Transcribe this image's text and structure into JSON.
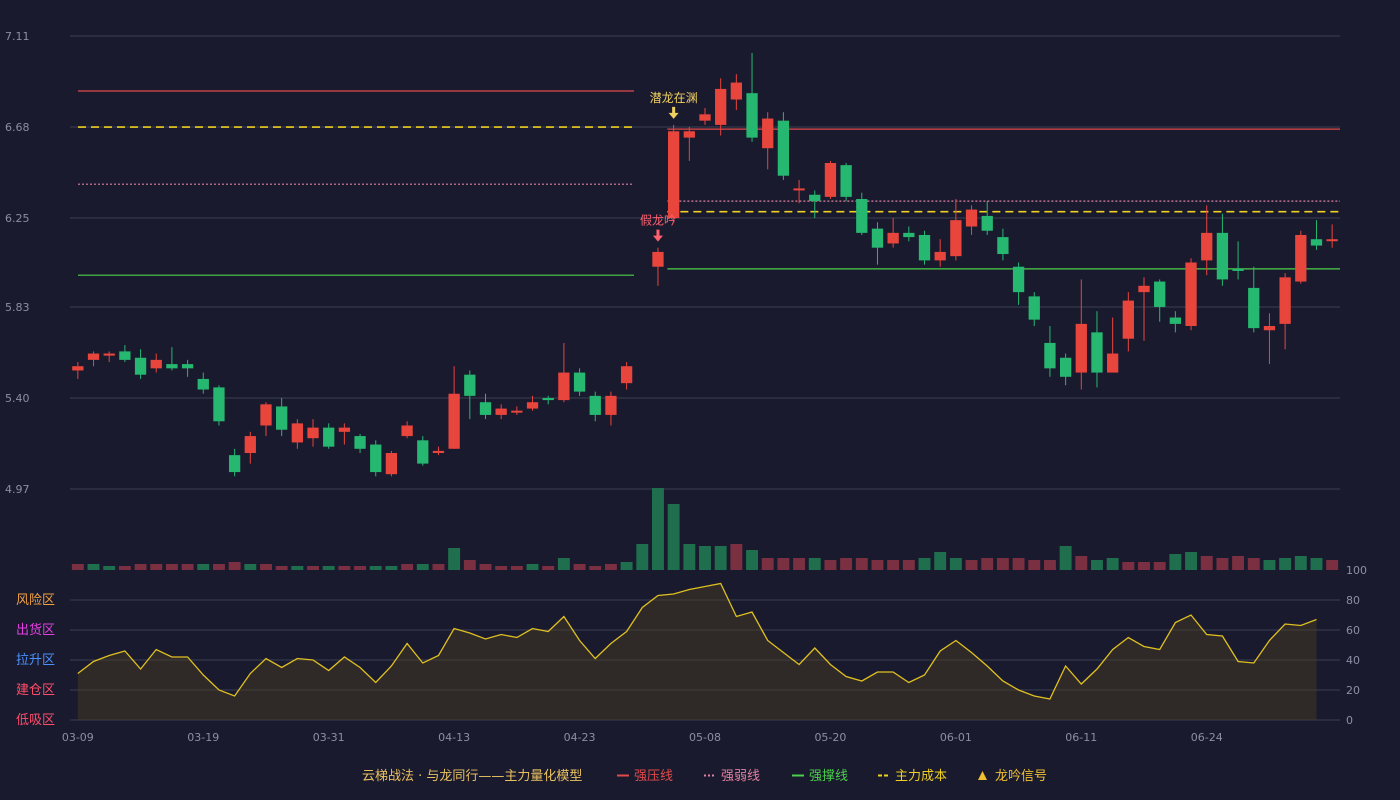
{
  "chart_data": {
    "type": "candlestick",
    "price_axis": {
      "ticks": [
        "7.11",
        "6.68",
        "6.25",
        "5.83",
        "5.40",
        "4.97"
      ],
      "ylim": [
        4.97,
        7.11
      ]
    },
    "x_ticks": [
      "03-09",
      "03-19",
      "03-31",
      "04-13",
      "04-23",
      "05-08",
      "05-20",
      "06-01",
      "06-11",
      "06-24"
    ],
    "candles": [
      [
        5.53,
        5.55,
        5.57,
        5.49
      ],
      [
        5.58,
        5.61,
        5.62,
        5.55
      ],
      [
        5.6,
        5.61,
        5.62,
        5.57
      ],
      [
        5.62,
        5.58,
        5.65,
        5.57
      ],
      [
        5.59,
        5.51,
        5.63,
        5.49
      ],
      [
        5.54,
        5.58,
        5.61,
        5.52
      ],
      [
        5.56,
        5.54,
        5.64,
        5.53
      ],
      [
        5.56,
        5.54,
        5.58,
        5.5
      ],
      [
        5.49,
        5.44,
        5.52,
        5.42
      ],
      [
        5.45,
        5.29,
        5.46,
        5.27
      ],
      [
        5.13,
        5.05,
        5.16,
        5.03
      ],
      [
        5.14,
        5.22,
        5.24,
        5.09
      ],
      [
        5.27,
        5.37,
        5.38,
        5.22
      ],
      [
        5.36,
        5.25,
        5.4,
        5.22
      ],
      [
        5.19,
        5.28,
        5.3,
        5.16
      ],
      [
        5.21,
        5.26,
        5.3,
        5.17
      ],
      [
        5.26,
        5.17,
        5.28,
        5.16
      ],
      [
        5.24,
        5.26,
        5.28,
        5.18
      ],
      [
        5.22,
        5.16,
        5.23,
        5.14
      ],
      [
        5.18,
        5.05,
        5.2,
        5.03
      ],
      [
        5.04,
        5.14,
        5.15,
        5.03
      ],
      [
        5.22,
        5.27,
        5.29,
        5.21
      ],
      [
        5.2,
        5.09,
        5.22,
        5.08
      ],
      [
        5.14,
        5.15,
        5.17,
        5.13
      ],
      [
        5.16,
        5.42,
        5.55,
        5.16
      ],
      [
        5.51,
        5.41,
        5.53,
        5.3
      ],
      [
        5.38,
        5.32,
        5.42,
        5.3
      ],
      [
        5.32,
        5.35,
        5.37,
        5.3
      ],
      [
        5.34,
        5.34,
        5.36,
        5.32
      ],
      [
        5.35,
        5.38,
        5.41,
        5.34
      ],
      [
        5.4,
        5.39,
        5.41,
        5.37
      ],
      [
        5.39,
        5.52,
        5.66,
        5.38
      ],
      [
        5.52,
        5.43,
        5.54,
        5.41
      ],
      [
        5.41,
        5.32,
        5.43,
        5.29
      ],
      [
        5.32,
        5.41,
        5.43,
        5.27
      ],
      [
        5.47,
        5.55,
        5.57,
        5.44
      ],
      null,
      [
        6.02,
        6.09,
        6.11,
        5.93
      ],
      [
        6.25,
        6.66,
        6.69,
        6.23
      ],
      [
        6.63,
        6.66,
        6.68,
        6.52
      ],
      [
        6.71,
        6.74,
        6.77,
        6.69
      ],
      [
        6.69,
        6.86,
        6.91,
        6.64
      ],
      [
        6.81,
        6.89,
        6.93,
        6.76
      ],
      [
        6.84,
        6.63,
        7.03,
        6.61
      ],
      [
        6.58,
        6.72,
        6.75,
        6.48
      ],
      [
        6.71,
        6.45,
        6.75,
        6.43
      ],
      [
        6.39,
        6.39,
        6.43,
        6.32
      ],
      [
        6.36,
        6.33,
        6.38,
        6.25
      ],
      [
        6.35,
        6.51,
        6.52,
        6.34
      ],
      [
        6.5,
        6.35,
        6.51,
        6.33
      ],
      [
        6.34,
        6.18,
        6.37,
        6.17
      ],
      [
        6.2,
        6.11,
        6.23,
        6.03
      ],
      [
        6.13,
        6.18,
        6.25,
        6.11
      ],
      [
        6.18,
        6.16,
        6.21,
        6.14
      ],
      [
        6.17,
        6.05,
        6.19,
        6.03
      ],
      [
        6.05,
        6.09,
        6.15,
        6.02
      ],
      [
        6.07,
        6.24,
        6.34,
        6.05
      ],
      [
        6.21,
        6.29,
        6.31,
        6.17
      ],
      [
        6.26,
        6.19,
        6.33,
        6.17
      ],
      [
        6.16,
        6.08,
        6.2,
        6.05
      ],
      [
        6.02,
        5.9,
        6.04,
        5.84
      ],
      [
        5.88,
        5.77,
        5.9,
        5.74
      ],
      [
        5.66,
        5.54,
        5.74,
        5.5
      ],
      [
        5.59,
        5.5,
        5.61,
        5.46
      ],
      [
        5.52,
        5.75,
        5.96,
        5.44
      ],
      [
        5.71,
        5.52,
        5.81,
        5.45
      ],
      [
        5.52,
        5.61,
        5.78,
        5.56
      ],
      [
        5.68,
        5.86,
        5.9,
        5.62
      ],
      [
        5.9,
        5.93,
        5.97,
        5.67
      ],
      [
        5.95,
        5.83,
        5.96,
        5.76
      ],
      [
        5.78,
        5.75,
        5.81,
        5.71
      ],
      [
        5.74,
        6.04,
        6.06,
        5.72
      ],
      [
        6.05,
        6.18,
        6.31,
        5.98
      ],
      [
        6.18,
        5.96,
        6.27,
        5.93
      ],
      [
        6.01,
        6.0,
        6.14,
        5.96
      ],
      [
        5.92,
        5.73,
        6.02,
        5.71
      ],
      [
        5.72,
        5.74,
        5.8,
        5.56
      ],
      [
        5.75,
        5.97,
        5.99,
        5.63
      ],
      [
        5.95,
        6.17,
        6.19,
        5.94
      ],
      [
        6.15,
        6.12,
        6.24,
        6.1
      ],
      [
        6.15,
        6.15,
        6.22,
        6.11
      ]
    ],
    "volume": [
      [
        3,
        1
      ],
      [
        3,
        0
      ],
      [
        2,
        0
      ],
      [
        2,
        1
      ],
      [
        3,
        1
      ],
      [
        3,
        1
      ],
      [
        3,
        1
      ],
      [
        3,
        1
      ],
      [
        3,
        0
      ],
      [
        3,
        1
      ],
      [
        4,
        1
      ],
      [
        3,
        0
      ],
      [
        3,
        1
      ],
      [
        2,
        1
      ],
      [
        2,
        0
      ],
      [
        2,
        1
      ],
      [
        2,
        0
      ],
      [
        2,
        1
      ],
      [
        2,
        1
      ],
      [
        2,
        0
      ],
      [
        2,
        0
      ],
      [
        3,
        1
      ],
      [
        3,
        0
      ],
      [
        3,
        1
      ],
      [
        11,
        0
      ],
      [
        5,
        1
      ],
      [
        3,
        1
      ],
      [
        2,
        1
      ],
      [
        2,
        1
      ],
      [
        3,
        0
      ],
      [
        2,
        1
      ],
      [
        6,
        0
      ],
      [
        3,
        1
      ],
      [
        2,
        1
      ],
      [
        3,
        1
      ],
      [
        4,
        0
      ],
      [
        13,
        0
      ],
      [
        41,
        0
      ],
      [
        33,
        0
      ],
      [
        13,
        0
      ],
      [
        12,
        0
      ],
      [
        12,
        0
      ],
      [
        13,
        1
      ],
      [
        10,
        0
      ],
      [
        6,
        1
      ],
      [
        6,
        1
      ],
      [
        6,
        1
      ],
      [
        6,
        0
      ],
      [
        5,
        1
      ],
      [
        6,
        1
      ],
      [
        6,
        1
      ],
      [
        5,
        1
      ],
      [
        5,
        1
      ],
      [
        5,
        1
      ],
      [
        6,
        0
      ],
      [
        9,
        0
      ],
      [
        6,
        0
      ],
      [
        5,
        1
      ],
      [
        6,
        1
      ],
      [
        6,
        1
      ],
      [
        6,
        1
      ],
      [
        5,
        1
      ],
      [
        5,
        1
      ],
      [
        12,
        0
      ],
      [
        7,
        1
      ],
      [
        5,
        0
      ],
      [
        6,
        0
      ],
      [
        4,
        1
      ],
      [
        4,
        1
      ],
      [
        4,
        1
      ],
      [
        8,
        0
      ],
      [
        9,
        0
      ],
      [
        7,
        1
      ],
      [
        6,
        1
      ],
      [
        7,
        1
      ],
      [
        6,
        1
      ],
      [
        5,
        0
      ],
      [
        6,
        0
      ],
      [
        7,
        0
      ],
      [
        6,
        0
      ],
      [
        5,
        1
      ]
    ],
    "oscillator": {
      "ticks": [
        "100",
        "80",
        "60",
        "40",
        "20",
        "0"
      ],
      "values": [
        31,
        39,
        43,
        46,
        34,
        47,
        42,
        42,
        30,
        20,
        16,
        31,
        41,
        35,
        41,
        40,
        33,
        42,
        35,
        25,
        36,
        51,
        38,
        43,
        61,
        58,
        54,
        57,
        55,
        61,
        59,
        69,
        53,
        41,
        51,
        59,
        75,
        83,
        84,
        87,
        89,
        91,
        69,
        72,
        53,
        45,
        37,
        48,
        37,
        29,
        26,
        32,
        32,
        25,
        30,
        46,
        53,
        45,
        36,
        26,
        20,
        16,
        14,
        36,
        24,
        34,
        47,
        55,
        49,
        47,
        65,
        70,
        57,
        56,
        39,
        38,
        53,
        64,
        63,
        67
      ],
      "zones": [
        "风险区",
        "出货区",
        "拉升区",
        "建仓区",
        "低吸区"
      ],
      "zone_colors": [
        "#f0a040",
        "#e040e0",
        "#4a90ff",
        "#ff4d6a",
        "#ff4d6a"
      ]
    },
    "levels": [
      {
        "name": "强压线",
        "value": 6.85,
        "from": 0,
        "to": 35,
        "color": "#e04a4a",
        "style": "solid"
      },
      {
        "name": "强弱线",
        "value": 6.41,
        "from": 0,
        "to": 35,
        "color": "#e080a0",
        "style": "dotted"
      },
      {
        "name": "主力成本",
        "value": 6.68,
        "from": 0,
        "to": 35,
        "color": "#f0d020",
        "style": "dashed"
      },
      {
        "name": "强撑线",
        "value": 5.98,
        "from": 0,
        "to": 35,
        "color": "#4ad04a",
        "style": "solid"
      },
      {
        "name": "强压线",
        "value": 6.67,
        "from": 38,
        "to": 80,
        "color": "#e04a4a",
        "style": "solid"
      },
      {
        "name": "强弱线",
        "value": 6.33,
        "from": 38,
        "to": 80,
        "color": "#e080a0",
        "style": "dotted"
      },
      {
        "name": "主力成本",
        "value": 6.28,
        "from": 38,
        "to": 80,
        "color": "#f0d020",
        "style": "dashed"
      },
      {
        "name": "强撑线",
        "value": 6.01,
        "from": 38,
        "to": 80,
        "color": "#4ad04a",
        "style": "solid"
      }
    ],
    "annotations": [
      {
        "text": "潜龙在渊",
        "index": 38,
        "color": "#f0d060"
      },
      {
        "text": "假龙吟",
        "index": 37,
        "color": "#ff6070"
      }
    ],
    "colors": {
      "up": "#e8453c",
      "down": "#26b870",
      "background": "#1a1a2e",
      "grid": "#3a3d52",
      "osc_line": "#e0c020"
    }
  },
  "legend": {
    "title": "云梯战法 · 与龙同行——主力量化模型",
    "items": [
      {
        "label": "强压线",
        "color": "#e04a4a",
        "marker": "solid"
      },
      {
        "label": "强弱线",
        "color": "#e080a0",
        "marker": "dotted"
      },
      {
        "label": "强撑线",
        "color": "#4ad04a",
        "marker": "solid"
      },
      {
        "label": "主力成本",
        "color": "#f0d020",
        "marker": "dashed"
      },
      {
        "label": "龙吟信号",
        "color": "#f0c030",
        "marker": "triangle"
      }
    ]
  }
}
